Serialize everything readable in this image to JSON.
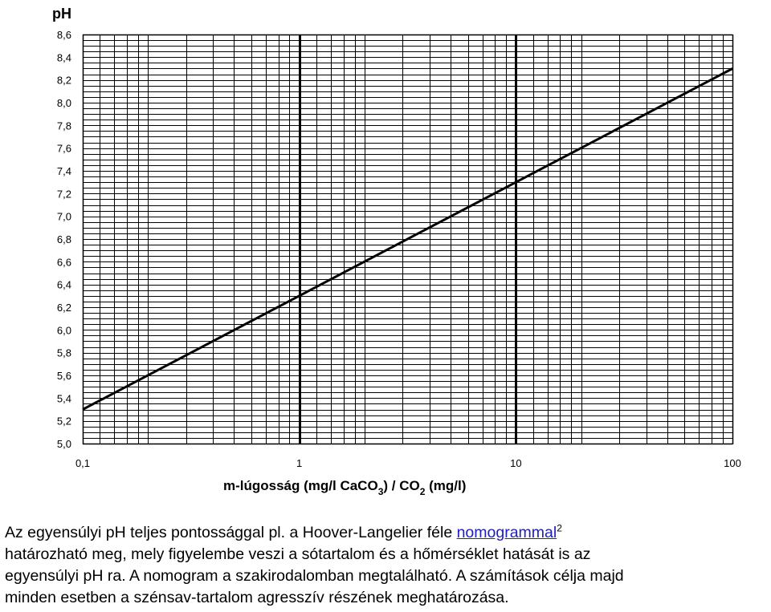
{
  "chart_data": {
    "type": "line",
    "title": "",
    "ylabel": "pH",
    "xlabel": {
      "part1": "m-lúgosság (mg/l CaCO",
      "sub1": "3",
      "part2": ") / CO",
      "sub2": "2",
      "part3": " (mg/l)"
    },
    "x_scale": "log",
    "xlim": [
      0.1,
      100
    ],
    "ylim": [
      5.0,
      8.6
    ],
    "x_ticks": [
      {
        "value": 0.1,
        "label": "0,1"
      },
      {
        "value": 1,
        "label": "1"
      },
      {
        "value": 10,
        "label": "10"
      },
      {
        "value": 100,
        "label": "100"
      }
    ],
    "y_ticks": [
      {
        "value": 5.0,
        "label": "5,0"
      },
      {
        "value": 5.2,
        "label": "5,2"
      },
      {
        "value": 5.4,
        "label": "5,4"
      },
      {
        "value": 5.6,
        "label": "5,6"
      },
      {
        "value": 5.8,
        "label": "5,8"
      },
      {
        "value": 6.0,
        "label": "6,0"
      },
      {
        "value": 6.2,
        "label": "6,2"
      },
      {
        "value": 6.4,
        "label": "6,4"
      },
      {
        "value": 6.6,
        "label": "6,6"
      },
      {
        "value": 6.8,
        "label": "6,8"
      },
      {
        "value": 7.0,
        "label": "7,0"
      },
      {
        "value": 7.2,
        "label": "7,2"
      },
      {
        "value": 7.4,
        "label": "7,4"
      },
      {
        "value": 7.6,
        "label": "7,6"
      },
      {
        "value": 7.8,
        "label": "7,8"
      },
      {
        "value": 8.0,
        "label": "8,0"
      },
      {
        "value": 8.2,
        "label": "8,2"
      },
      {
        "value": 8.4,
        "label": "8,4"
      },
      {
        "value": 8.6,
        "label": "8,6"
      }
    ],
    "grid": true,
    "legend": "none",
    "series": [
      {
        "x": [
          0.1,
          1,
          10,
          100
        ],
        "y": [
          5.3,
          6.3,
          7.3,
          8.3
        ]
      }
    ]
  },
  "caption": {
    "line1_before": "Az egyensúlyi pH teljes pontossággal pl. a Hoover-Langelier féle ",
    "link": "nomogrammal",
    "sup": "2",
    "line2": "határozható meg, mely figyelembe veszi a sótartalom és a hőmérséklet hatását is az",
    "line3": "egyensúlyi pH ra. A nomogram a szakirodalomban megtalálható. A számítások célja majd",
    "line4": "minden esetben a szénsav-tartalom agresszív részének meghatározása."
  }
}
